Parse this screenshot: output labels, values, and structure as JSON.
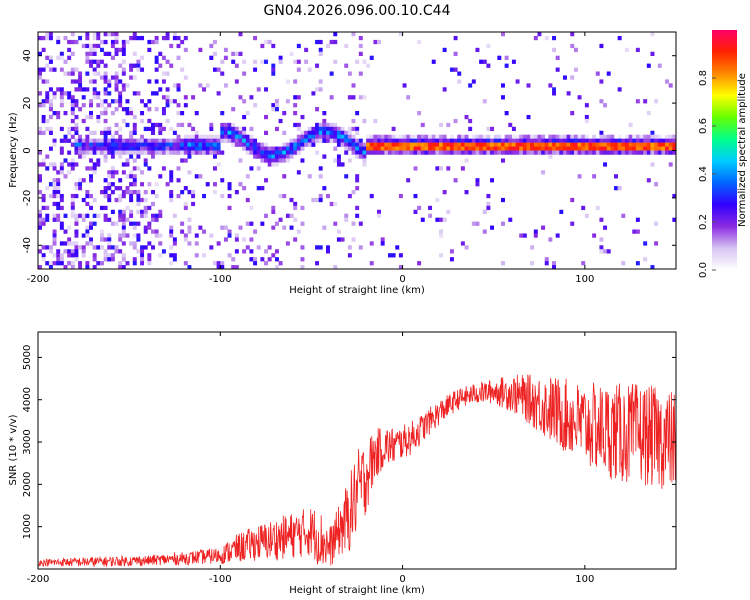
{
  "chart_data": [
    {
      "type": "heatmap",
      "title": "GN04.2026.096.00.10.C44",
      "xlabel": "Height of straight line (km)",
      "ylabel": "Frequency (Hz)",
      "xlim": [
        -200,
        150
      ],
      "ylim": [
        -50,
        50
      ],
      "xticks": [
        -200,
        -100,
        0,
        100
      ],
      "yticks": [
        -40,
        -20,
        0,
        20,
        40
      ],
      "colorbar": {
        "label": "Normalized spectral amplitude",
        "range": [
          0,
          1
        ],
        "ticks": [
          0.0,
          0.2,
          0.4,
          0.6,
          0.8
        ],
        "colors": [
          "#ffffff",
          "#d8c4f2",
          "#8a2be2",
          "#3300ff",
          "#0066ff",
          "#00ccff",
          "#00ff88",
          "#66ff00",
          "#ffff00",
          "#ff8800",
          "#ff2200",
          "#ff0066"
        ]
      },
      "signal_band": {
        "description": "narrow high-amplitude band near 2 Hz",
        "x_range": [
          -20,
          150
        ],
        "frequency": 2,
        "amplitude": 0.95
      }
    },
    {
      "type": "line",
      "title": "",
      "xlabel": "Height of straight line (km)",
      "ylabel": "SNR (10 * v/v)",
      "xlim": [
        -200,
        150
      ],
      "ylim": [
        0,
        5600
      ],
      "xticks": [
        -200,
        -100,
        0,
        100
      ],
      "yticks": [
        1000,
        2000,
        3000,
        4000,
        5000
      ],
      "color": "#ee2222",
      "envelope": {
        "x": [
          -200,
          -170,
          -140,
          -120,
          -100,
          -90,
          -80,
          -70,
          -60,
          -50,
          -45,
          -40,
          -35,
          -30,
          -25,
          -20,
          -15,
          -10,
          -5,
          0,
          5,
          10,
          20,
          30,
          40,
          50,
          60,
          70,
          80,
          90,
          100,
          110,
          120,
          130,
          140,
          150
        ],
        "mean": [
          150,
          170,
          200,
          250,
          320,
          500,
          620,
          700,
          800,
          900,
          700,
          500,
          900,
          1200,
          1800,
          2200,
          2700,
          2900,
          2900,
          3000,
          3100,
          3300,
          3700,
          4000,
          4150,
          4200,
          4150,
          4000,
          3800,
          3600,
          3400,
          3300,
          3200,
          3200,
          3100,
          3000
        ],
        "spread": [
          80,
          120,
          120,
          150,
          200,
          350,
          420,
          500,
          550,
          600,
          700,
          500,
          600,
          900,
          1000,
          900,
          600,
          500,
          450,
          400,
          400,
          350,
          300,
          250,
          250,
          300,
          450,
          600,
          800,
          900,
          1000,
          1100,
          1200,
          1200,
          1200,
          1200
        ]
      }
    }
  ]
}
